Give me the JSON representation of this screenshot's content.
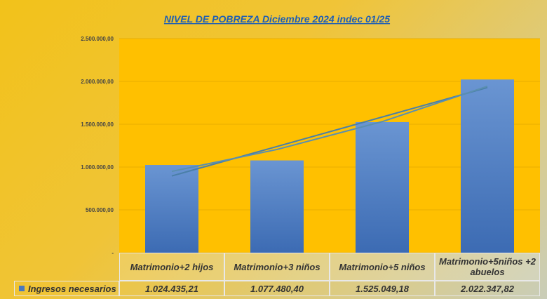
{
  "chart_data": {
    "type": "bar",
    "title": "NIVEL DE POBREZA Diciembre  2024  indec 01/25",
    "categories": [
      "Matrimonio+2 hijos",
      "Matrimonio+3 niños",
      "Matrimonio+5 niños",
      "Matrimonio+5niños +2 abuelos"
    ],
    "series": [
      {
        "name": "Ingresos necesarios",
        "color": "#4a78be",
        "values": [
          1024435.21,
          1077480.4,
          1525049.18,
          2022347.82
        ],
        "value_labels": [
          "1.024.435,21",
          "1.077.480,40",
          "1.525.049,18",
          "2.022.347,82"
        ]
      }
    ],
    "ylim": [
      0,
      2500000
    ],
    "yticks": [
      {
        "value": 0,
        "label": "-"
      },
      {
        "value": 500000,
        "label": "500.000,00"
      },
      {
        "value": 1000000,
        "label": "1.000.000,00"
      },
      {
        "value": 1500000,
        "label": "1.500.000,00"
      },
      {
        "value": 2000000,
        "label": "2.000.000,00"
      },
      {
        "value": 2500000,
        "label": "2.500.000,00"
      }
    ],
    "grid": true,
    "trendline": true
  }
}
